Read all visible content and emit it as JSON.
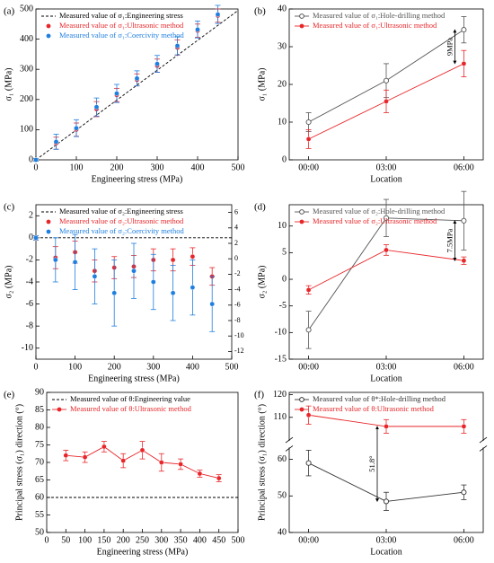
{
  "chart_data": [
    {
      "type": "scatter",
      "panel_label": "(a)",
      "xlabel": "Engineering stress (MPa)",
      "ylabel": "σ₁ (MPa)",
      "xlim": [
        0,
        500
      ],
      "xticks": [
        0,
        100,
        200,
        300,
        400,
        500
      ],
      "ylim": [
        0,
        500
      ],
      "yticks": [
        0,
        100,
        200,
        300,
        400,
        500
      ],
      "series": [
        {
          "name": "Measured value of σ₁:Engineering stress",
          "color": "#000000",
          "style": "dashed",
          "x": [
            0,
            500
          ],
          "values": [
            0,
            495
          ]
        },
        {
          "name": "Measured value of σ₁:Ultrasonic method",
          "color": "#e8262a",
          "style": "markers",
          "x": [
            0,
            50,
            100,
            150,
            200,
            250,
            300,
            350,
            400,
            450
          ],
          "values": [
            0,
            55,
            100,
            168,
            215,
            265,
            312,
            372,
            428,
            478
          ],
          "errors": [
            4,
            20,
            22,
            25,
            22,
            20,
            22,
            25,
            22,
            22
          ]
        },
        {
          "name": "Measured value of σ₁:Coercivity method",
          "color": "#1f7fe0",
          "style": "markers",
          "x": [
            0,
            50,
            100,
            150,
            200,
            250,
            300,
            350,
            400,
            450
          ],
          "values": [
            0,
            60,
            105,
            175,
            220,
            270,
            318,
            378,
            432,
            482
          ],
          "errors": [
            5,
            25,
            28,
            30,
            30,
            25,
            28,
            30,
            28,
            30
          ]
        }
      ]
    },
    {
      "type": "line",
      "panel_label": "(b)",
      "xlabel": "Location",
      "ylabel": "σ₁ (MPa)",
      "categories": [
        "00:00",
        "03:00",
        "06:00"
      ],
      "ylim": [
        0,
        40
      ],
      "yticks": [
        0,
        10,
        20,
        30,
        40
      ],
      "series": [
        {
          "name": "Measured value of σ₁:Hole-drilling method",
          "color": "#555555",
          "style": "line-markers",
          "values": [
            10,
            21,
            34.5
          ],
          "errors": [
            2.5,
            4.5,
            3.5
          ]
        },
        {
          "name": "Measured value of σ₁:Ultrasonic method",
          "color": "#e8262a",
          "style": "line-markers",
          "values": [
            5.5,
            15.5,
            25.5
          ],
          "errors": [
            2.5,
            3,
            3.5
          ]
        }
      ],
      "annotations": [
        "9MPa"
      ]
    },
    {
      "type": "scatter",
      "panel_label": "(c)",
      "xlabel": "Engineering stress (MPa)",
      "ylabel": "σ₂ (MPa)",
      "xlim": [
        0,
        500
      ],
      "xticks": [
        0,
        100,
        200,
        300,
        400,
        500
      ],
      "ylim": [
        -11,
        3
      ],
      "yticks": [
        -10,
        -8,
        -6,
        -4,
        -2,
        0,
        2
      ],
      "y2lim": [
        -13,
        7
      ],
      "y2ticks": [
        -12,
        -10,
        -8,
        -6,
        -4,
        -2,
        0,
        2,
        4,
        6
      ],
      "series": [
        {
          "name": "Measured value of σ₂:Engineering stress",
          "color": "#000000",
          "style": "dashed",
          "x": [
            0,
            500
          ],
          "values": [
            0,
            0
          ]
        },
        {
          "name": "Measured value of σ₂:Ultrasonic method",
          "color": "#e8262a",
          "style": "markers",
          "x": [
            0,
            50,
            100,
            150,
            200,
            250,
            300,
            350,
            400,
            450
          ],
          "values": [
            0,
            -1.8,
            -1.3,
            -3,
            -2.7,
            -2.6,
            -2,
            -2,
            -1.7,
            -3.5
          ],
          "errors": [
            0.2,
            1,
            1,
            1,
            1,
            1,
            1,
            1,
            0.8,
            0.8
          ]
        },
        {
          "name": "Measured value of σ₂:Coercivity method",
          "color": "#1f7fe0",
          "style": "markers",
          "x": [
            0,
            50,
            100,
            150,
            200,
            250,
            300,
            350,
            400,
            450
          ],
          "values": [
            0,
            -2,
            -2.2,
            -3.5,
            -5,
            -3,
            -4,
            -5,
            -4.5,
            -6
          ],
          "errors": [
            0.2,
            2,
            2.5,
            2.5,
            3,
            2.5,
            2.5,
            2.5,
            2.5,
            2.5
          ]
        }
      ]
    },
    {
      "type": "line",
      "panel_label": "(d)",
      "xlabel": "Location",
      "ylabel": "σ₂ (MPa)",
      "categories": [
        "00:00",
        "03:00",
        "06:00"
      ],
      "ylim": [
        -15,
        14
      ],
      "yticks": [
        -15,
        -10,
        -5,
        0,
        5,
        10
      ],
      "series": [
        {
          "name": "Measured value of σ₂:Hole-drilling method",
          "color": "#555555",
          "style": "line-markers",
          "values": [
            -9.5,
            11.5,
            11
          ],
          "errors": [
            3.5,
            3.5,
            5.5
          ]
        },
        {
          "name": "Measured value of σ₂:Ultrasonic method",
          "color": "#e8262a",
          "style": "line-markers",
          "values": [
            -2,
            5.5,
            3.5
          ],
          "errors": [
            0.8,
            1,
            0.7
          ]
        }
      ],
      "annotations": [
        "7.5MPa"
      ]
    },
    {
      "type": "scatter",
      "panel_label": "(e)",
      "xlabel": "Engineering stress (MPa)",
      "ylabel": "Principal stress (σ₁) direction (°)",
      "xlim": [
        0,
        500
      ],
      "xticks": [
        0,
        50,
        100,
        150,
        200,
        250,
        300,
        350,
        400,
        450,
        500
      ],
      "ylim": [
        50,
        90
      ],
      "yticks": [
        50,
        55,
        60,
        65,
        70,
        75,
        80,
        85,
        90
      ],
      "series": [
        {
          "name": "Measured value of θ:Engineering value",
          "color": "#000000",
          "style": "dashed",
          "x": [
            0,
            500
          ],
          "values": [
            60,
            60
          ]
        },
        {
          "name": "Measured value of θ:Ultrasonic method",
          "color": "#e8262a",
          "style": "line-markers",
          "x": [
            50,
            100,
            150,
            200,
            250,
            300,
            350,
            400,
            450
          ],
          "values": [
            72,
            71.5,
            74.5,
            70.5,
            73.5,
            70,
            69.5,
            66.8,
            65.5
          ],
          "errors": [
            1.5,
            1.5,
            1.5,
            2,
            2.5,
            2.5,
            1.5,
            1,
            1
          ]
        }
      ]
    },
    {
      "type": "line",
      "panel_label": "(f)",
      "xlabel": "Location",
      "ylabel": "Principal stress (σ₁) direction (°)",
      "categories": [
        "00:00",
        "03:00",
        "06:00"
      ],
      "ylim_lower": [
        40,
        63
      ],
      "ylim_upper": [
        100,
        121
      ],
      "yticks": [
        40,
        50,
        60,
        110,
        120
      ],
      "series": [
        {
          "name": "Measured value of θ*:Hole-drilling method",
          "color": "#333333",
          "style": "line-markers",
          "values": [
            59,
            48.5,
            51
          ],
          "errors": [
            3.5,
            2.5,
            2
          ]
        },
        {
          "name": "Measured value of θ:Ultrasonic method",
          "color": "#e8262a",
          "style": "line-markers",
          "values": [
            111,
            106,
            106
          ],
          "errors": [
            4,
            3,
            3
          ]
        }
      ],
      "annotations": [
        "51.8°"
      ]
    }
  ]
}
